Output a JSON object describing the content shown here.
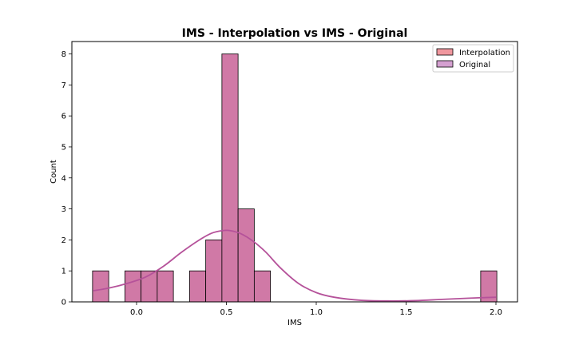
{
  "chart_data": {
    "type": "bar",
    "title": "IMS - Interpolation vs IMS - Original",
    "xlabel": "IMS",
    "ylabel": "Count",
    "xlim": [
      -0.36,
      2.12
    ],
    "ylim": [
      0,
      8.4
    ],
    "xticks": [
      "0.0",
      "0.5",
      "1.0",
      "1.5",
      "2.0"
    ],
    "xtick_values": [
      0,
      0.5,
      1.0,
      1.5,
      2.0
    ],
    "yticks": [
      "0",
      "1",
      "2",
      "3",
      "4",
      "5",
      "6",
      "7",
      "8"
    ],
    "yticks_values": [
      0,
      1,
      2,
      3,
      4,
      5,
      6,
      7,
      8
    ],
    "grid": false,
    "legend_position": "top-right",
    "bins": [
      {
        "x0": -0.245,
        "x1": -0.155,
        "count": 1
      },
      {
        "x0": -0.065,
        "x1": 0.025,
        "count": 1
      },
      {
        "x0": 0.025,
        "x1": 0.115,
        "count": 1
      },
      {
        "x0": 0.115,
        "x1": 0.205,
        "count": 1
      },
      {
        "x0": 0.295,
        "x1": 0.385,
        "count": 1
      },
      {
        "x0": 0.385,
        "x1": 0.475,
        "count": 2
      },
      {
        "x0": 0.475,
        "x1": 0.565,
        "count": 8
      },
      {
        "x0": 0.565,
        "x1": 0.655,
        "count": 3
      },
      {
        "x0": 0.655,
        "x1": 0.745,
        "count": 1
      },
      {
        "x0": 1.915,
        "x1": 2.005,
        "count": 1
      }
    ],
    "kde": {
      "x": [
        -0.24,
        -0.15,
        -0.05,
        0.05,
        0.15,
        0.25,
        0.35,
        0.42,
        0.48,
        0.52,
        0.58,
        0.65,
        0.72,
        0.8,
        0.9,
        1.0,
        1.1,
        1.25,
        1.4,
        1.55,
        1.7,
        1.85,
        2.0
      ],
      "y": [
        0.36,
        0.45,
        0.6,
        0.8,
        1.15,
        1.6,
        2.0,
        2.22,
        2.3,
        2.3,
        2.2,
        1.95,
        1.6,
        1.1,
        0.6,
        0.3,
        0.15,
        0.05,
        0.03,
        0.04,
        0.08,
        0.12,
        0.15
      ]
    },
    "series": [
      {
        "name": "Interpolation",
        "color": "#f0979e"
      },
      {
        "name": "Original",
        "color": "#d4a0d0"
      }
    ],
    "bar_color": "#d079a6",
    "kde_color": "#b5529a"
  }
}
